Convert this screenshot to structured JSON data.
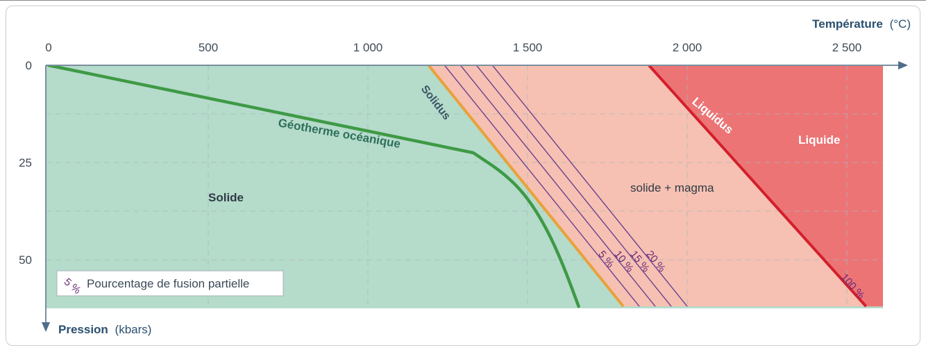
{
  "chart_data": {
    "type": "area",
    "x_axis": {
      "label": "Température",
      "unit": "(°C)",
      "ticks": [
        {
          "value": 0,
          "label": "0"
        },
        {
          "value": 500,
          "label": "500"
        },
        {
          "value": 1000,
          "label": "1 000"
        },
        {
          "value": 1500,
          "label": "1 500"
        },
        {
          "value": 2000,
          "label": "2 000"
        },
        {
          "value": 2500,
          "label": "2 500"
        }
      ],
      "range": [
        0,
        2700
      ],
      "position": "top"
    },
    "y_axis": {
      "label": "Pression",
      "unit": "(kbars)",
      "ticks": [
        {
          "value": 0,
          "label": "0"
        },
        {
          "value": 25,
          "label": "25"
        },
        {
          "value": 50,
          "label": "50"
        }
      ],
      "range": [
        0,
        62
      ],
      "inverted": true
    },
    "grid": true,
    "regions": [
      {
        "name": "solide",
        "label": "Solide",
        "color": "#b5dbcb"
      },
      {
        "name": "solide-magma",
        "label": "solide + magma",
        "color": "#f6c1b2"
      },
      {
        "name": "liquide",
        "label": "Liquide",
        "color": "#ec7475"
      }
    ],
    "curves": [
      {
        "name": "geotherme",
        "label": "Géotherme océanique",
        "color": "#3e9a45",
        "points": [
          [
            0,
            0
          ],
          [
            1330,
            22.5
          ],
          [
            1430,
            28
          ],
          [
            1500,
            34
          ],
          [
            1560,
            42
          ],
          [
            1610,
            51
          ],
          [
            1660,
            62
          ]
        ]
      },
      {
        "name": "solidus",
        "label": "Solidus",
        "color": "#e8a13a",
        "points": [
          [
            1190,
            0
          ],
          [
            1800,
            62
          ]
        ]
      },
      {
        "name": "liquidus",
        "label": "Liquidus",
        "color": "#d31f2c",
        "points": [
          [
            1880,
            0
          ],
          [
            2560,
            62
          ]
        ]
      }
    ],
    "partial_melting": [
      {
        "label": "5 %",
        "top": 1240
      },
      {
        "label": "10 %",
        "top": 1290
      },
      {
        "label": "15 %",
        "top": 1340
      },
      {
        "label": "20 %",
        "top": 1390
      },
      {
        "label": "100 %",
        "top": 1880
      }
    ],
    "pct_line_color": "#6c3f8f",
    "legend": {
      "symbol": "5 %",
      "text": "Pourcentage de fusion partielle",
      "placement": "bottom-left"
    }
  }
}
